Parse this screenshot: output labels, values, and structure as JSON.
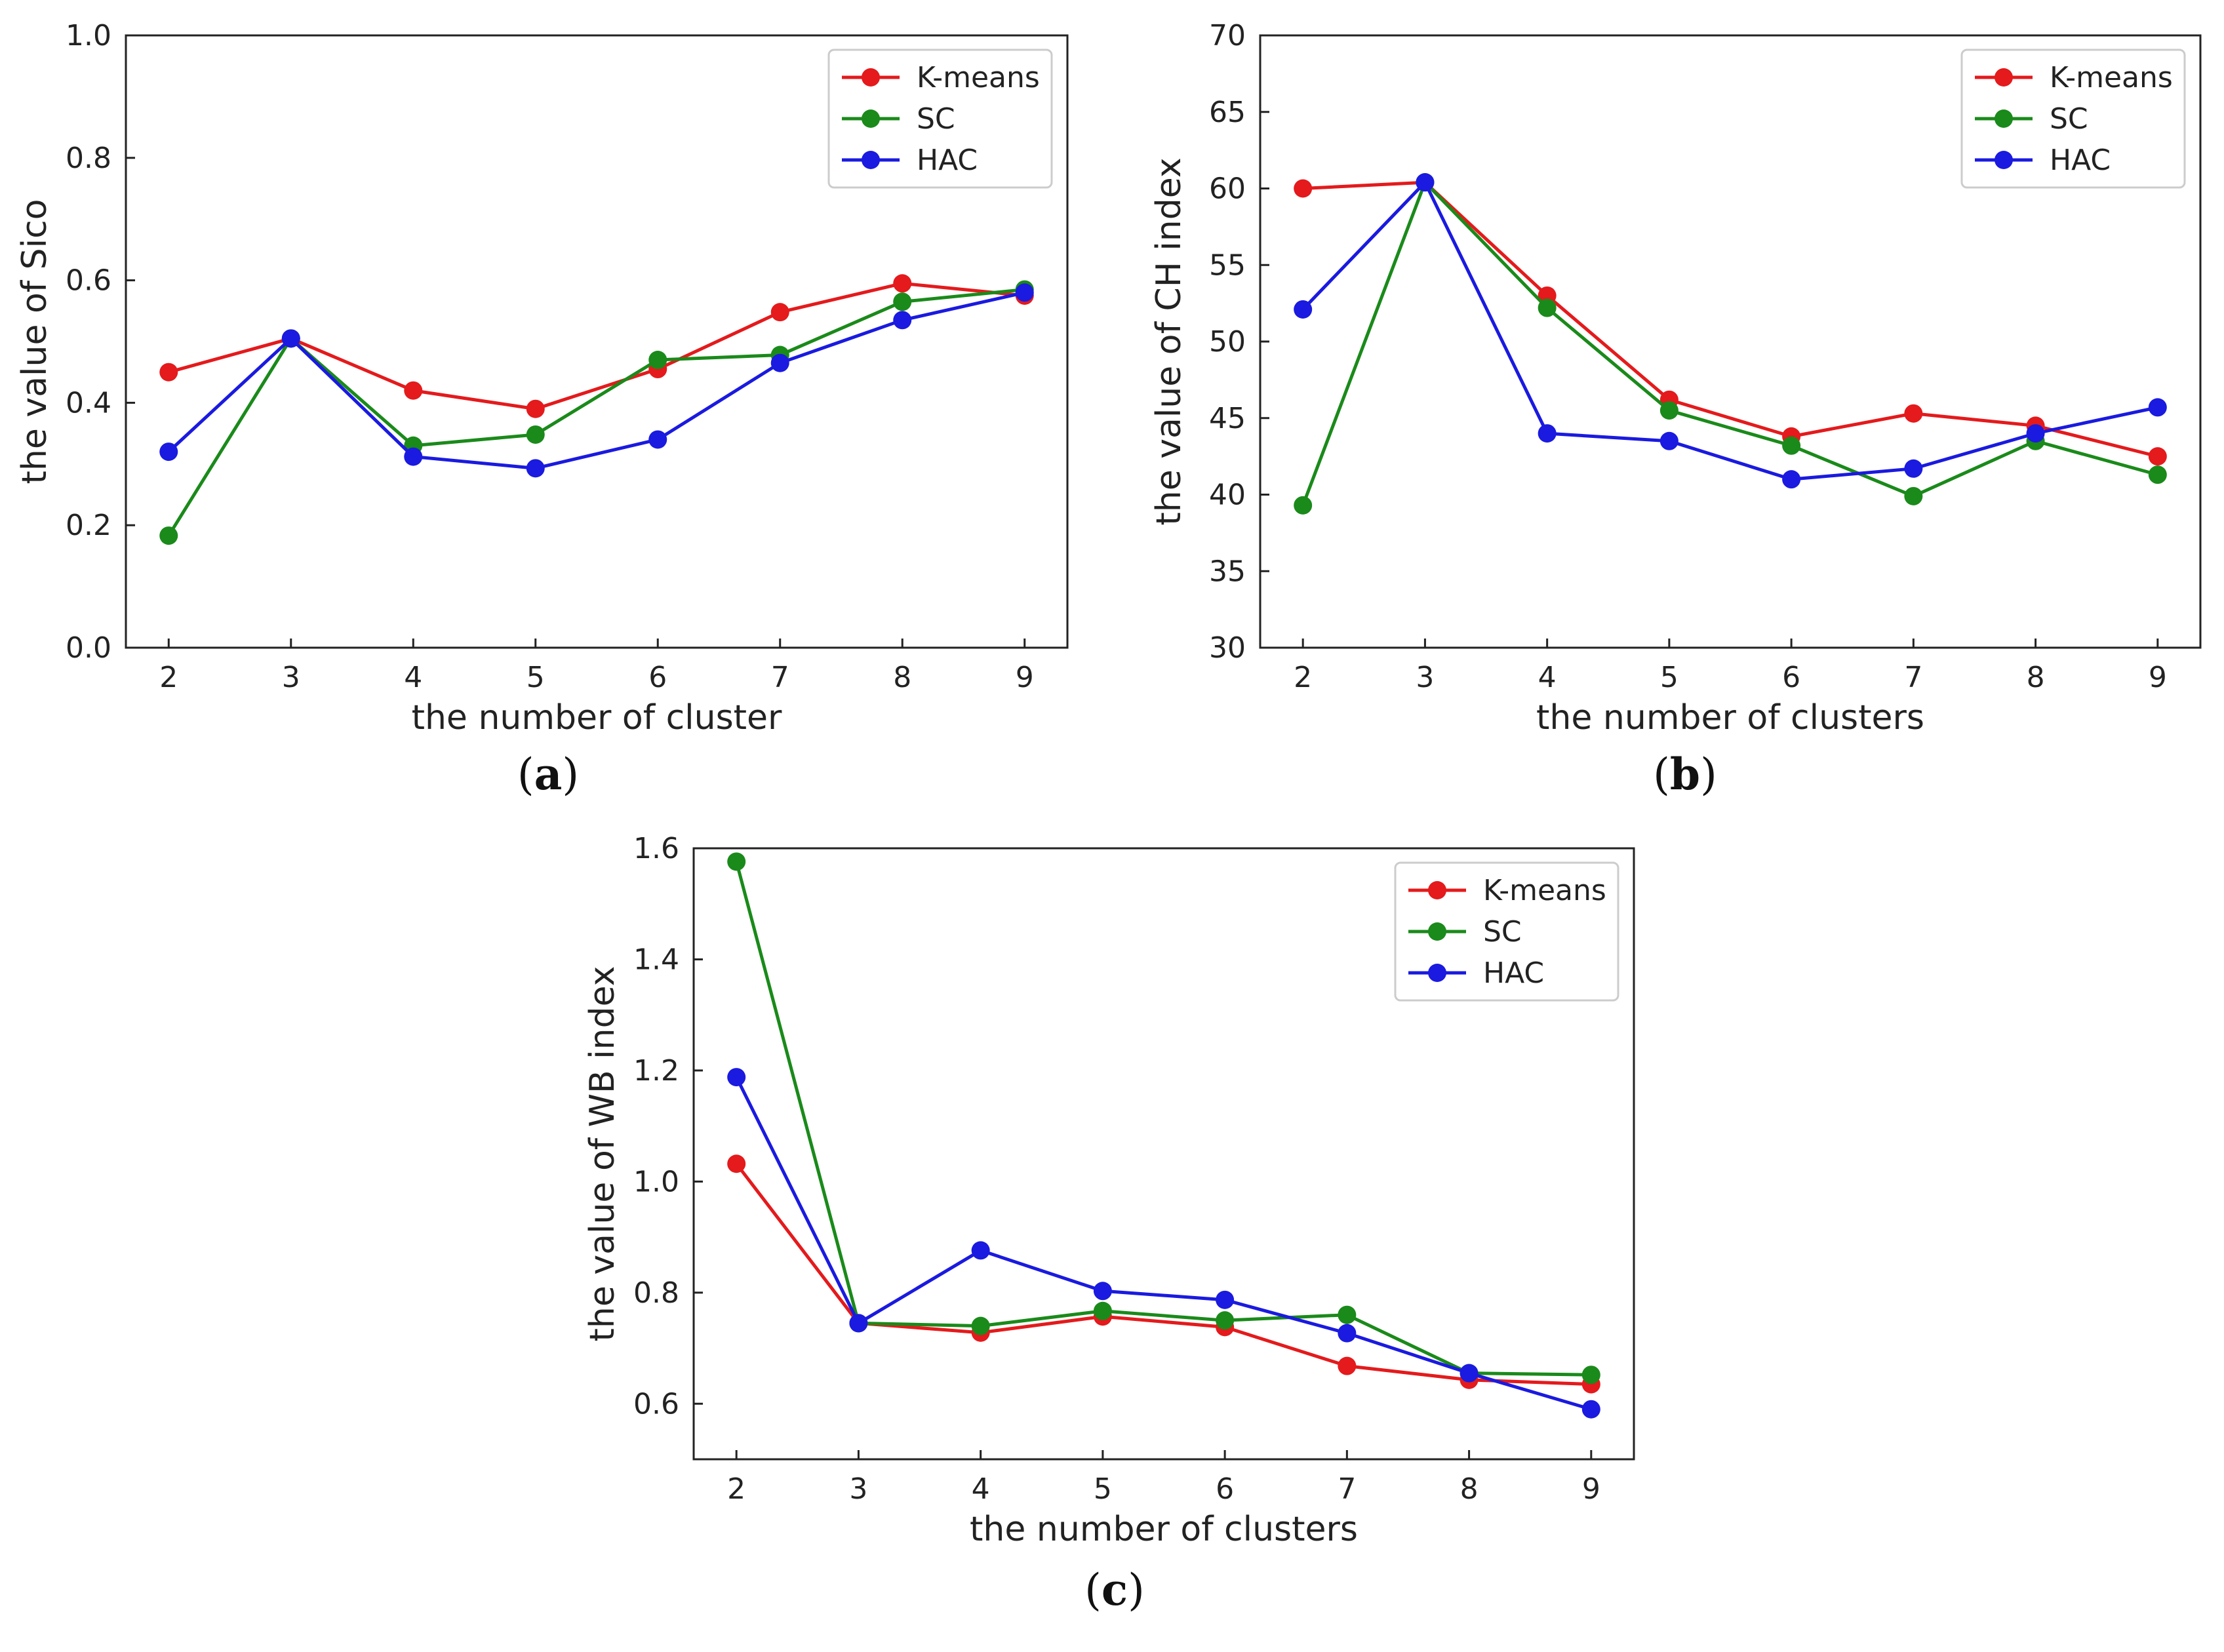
{
  "colors": {
    "K-means": "#e41a1c",
    "SC": "#1a8a1a",
    "HAC": "#1a1ae0"
  },
  "chart_data": [
    {
      "type": "line",
      "panel": "a",
      "xlabel": "the number of cluster",
      "ylabel": "the value of Sico",
      "x": [
        2,
        3,
        4,
        5,
        6,
        7,
        8,
        9
      ],
      "xlim": [
        1.65,
        9.35
      ],
      "ylim": [
        0.0,
        1.0
      ],
      "yticks": [
        0.0,
        0.2,
        0.4,
        0.6,
        0.8,
        1.0
      ],
      "ytick_labels": [
        "0.0",
        "0.2",
        "0.4",
        "0.6",
        "0.8",
        "1.0"
      ],
      "xtick_labels": [
        "2",
        "3",
        "4",
        "5",
        "6",
        "7",
        "8",
        "9"
      ],
      "legend": "top-right",
      "grid": false,
      "series": [
        {
          "name": "K-means",
          "values": [
            0.45,
            0.505,
            0.42,
            0.39,
            0.455,
            0.548,
            0.595,
            0.575
          ]
        },
        {
          "name": "SC",
          "values": [
            0.183,
            0.505,
            0.33,
            0.348,
            0.47,
            0.478,
            0.565,
            0.585
          ]
        },
        {
          "name": "HAC",
          "values": [
            0.32,
            0.505,
            0.312,
            0.293,
            0.34,
            0.465,
            0.535,
            0.58
          ]
        }
      ]
    },
    {
      "type": "line",
      "panel": "b",
      "xlabel": "the number of clusters",
      "ylabel": "the value of CH index",
      "x": [
        2,
        3,
        4,
        5,
        6,
        7,
        8,
        9
      ],
      "xlim": [
        1.65,
        9.35
      ],
      "ylim": [
        30,
        70
      ],
      "yticks": [
        30,
        35,
        40,
        45,
        50,
        55,
        60,
        65,
        70
      ],
      "ytick_labels": [
        "30",
        "35",
        "40",
        "45",
        "50",
        "55",
        "60",
        "65",
        "70"
      ],
      "xtick_labels": [
        "2",
        "3",
        "4",
        "5",
        "6",
        "7",
        "8",
        "9"
      ],
      "legend": "top-right",
      "grid": false,
      "series": [
        {
          "name": "K-means",
          "values": [
            60.0,
            60.4,
            53.0,
            46.2,
            43.8,
            45.3,
            44.5,
            42.5
          ]
        },
        {
          "name": "SC",
          "values": [
            39.3,
            60.4,
            52.2,
            45.5,
            43.2,
            39.9,
            43.5,
            41.3
          ]
        },
        {
          "name": "HAC",
          "values": [
            52.1,
            60.4,
            44.0,
            43.5,
            41.0,
            41.7,
            44.0,
            45.7
          ]
        }
      ]
    },
    {
      "type": "line",
      "panel": "c",
      "xlabel": "the number of clusters",
      "ylabel": "the value of WB index",
      "x": [
        2,
        3,
        4,
        5,
        6,
        7,
        8,
        9
      ],
      "xlim": [
        1.65,
        9.35
      ],
      "ylim": [
        0.5,
        1.6
      ],
      "yticks": [
        0.6,
        0.8,
        1.0,
        1.2,
        1.4,
        1.6
      ],
      "ytick_labels": [
        "0.6",
        "0.8",
        "1.0",
        "1.2",
        "1.4",
        "1.6"
      ],
      "xtick_labels": [
        "2",
        "3",
        "4",
        "5",
        "6",
        "7",
        "8",
        "9"
      ],
      "legend": "top-right",
      "grid": false,
      "series": [
        {
          "name": "K-means",
          "values": [
            1.032,
            0.745,
            0.728,
            0.757,
            0.738,
            0.668,
            0.643,
            0.635
          ]
        },
        {
          "name": "SC",
          "values": [
            1.576,
            0.745,
            0.74,
            0.767,
            0.75,
            0.76,
            0.655,
            0.652
          ]
        },
        {
          "name": "HAC",
          "values": [
            1.188,
            0.745,
            0.876,
            0.803,
            0.787,
            0.727,
            0.655,
            0.59
          ]
        }
      ]
    }
  ],
  "panel_labels": [
    "(a)",
    "(b)",
    "(c)"
  ]
}
